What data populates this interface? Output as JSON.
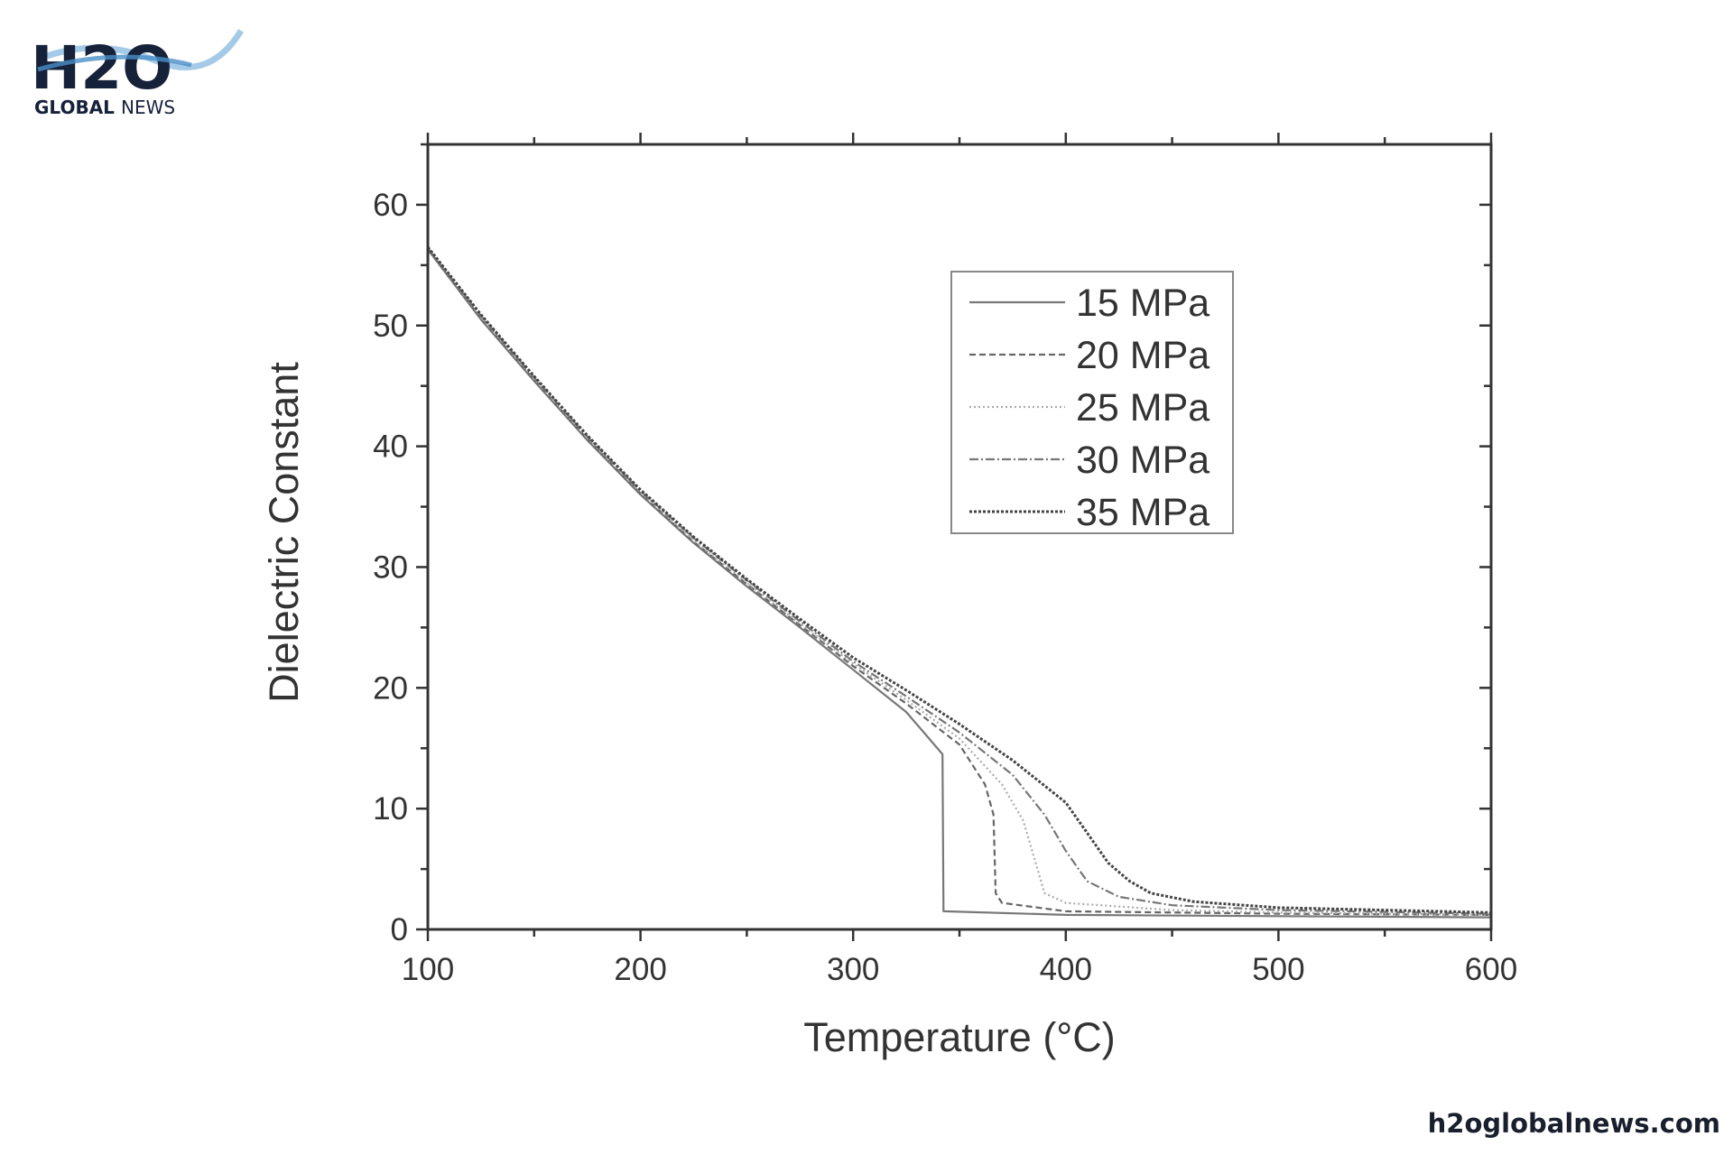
{
  "brand": {
    "logo_text": "H2O",
    "logo_subtitle_bold": "GLOBAL",
    "logo_subtitle": "NEWS",
    "site_url": "h2oglobalnews.com",
    "navy": "#16213a",
    "water": "#4a8fc7"
  },
  "chart_data": {
    "type": "line",
    "title": "",
    "xlabel": "Temperature (°C)",
    "ylabel": "Dielectric Constant",
    "xlim": [
      100,
      600
    ],
    "ylim": [
      0,
      65
    ],
    "xticks": [
      100,
      200,
      300,
      400,
      500,
      600
    ],
    "yticks": [
      0,
      10,
      20,
      30,
      40,
      50,
      60
    ],
    "xminor_step": 50,
    "yminor_step": 5,
    "grid": false,
    "legend_position": "top-right",
    "series": [
      {
        "name": "15 MPa",
        "style": "solid",
        "color": "#777777",
        "x": [
          100,
          125,
          150,
          175,
          200,
          225,
          250,
          275,
          300,
          325,
          342,
          342.5,
          400,
          500,
          600
        ],
        "y": [
          56.3,
          50.5,
          45.4,
          40.5,
          36,
          32,
          28.4,
          25,
          21.5,
          18,
          14.5,
          1.5,
          1.2,
          1.1,
          1.0
        ]
      },
      {
        "name": "20 MPa",
        "style": "dashed",
        "color": "#666666",
        "x": [
          100,
          125,
          150,
          175,
          200,
          225,
          250,
          275,
          300,
          325,
          350,
          362,
          366,
          367,
          370,
          400,
          500,
          600
        ],
        "y": [
          56.3,
          50.6,
          45.5,
          40.6,
          36.1,
          32.1,
          28.6,
          25.2,
          21.8,
          18.7,
          15.3,
          12,
          9.5,
          3,
          2.2,
          1.5,
          1.3,
          1.2
        ]
      },
      {
        "name": "25 MPa",
        "style": "dotted",
        "color": "#aaaaaa",
        "x": [
          100,
          125,
          150,
          175,
          200,
          225,
          250,
          275,
          300,
          325,
          350,
          370,
          380,
          385,
          390,
          400,
          450,
          500,
          600
        ],
        "y": [
          56.4,
          50.7,
          45.6,
          40.7,
          36.2,
          32.2,
          28.7,
          25.3,
          22,
          19,
          15.8,
          12,
          9,
          6,
          3,
          2.2,
          1.6,
          1.4,
          1.2
        ]
      },
      {
        "name": "30 MPa",
        "style": "dashdot",
        "color": "#777777",
        "x": [
          100,
          125,
          150,
          175,
          200,
          225,
          250,
          275,
          300,
          325,
          350,
          375,
          390,
          400,
          410,
          425,
          450,
          500,
          600
        ],
        "y": [
          56.4,
          50.8,
          45.7,
          40.8,
          36.3,
          32.4,
          28.9,
          25.5,
          22.2,
          19.3,
          16.3,
          12.8,
          9.5,
          6.5,
          4,
          2.7,
          2,
          1.6,
          1.3
        ]
      },
      {
        "name": "35 MPa",
        "style": "dotted-dense",
        "color": "#444444",
        "x": [
          100,
          125,
          150,
          175,
          200,
          225,
          250,
          275,
          300,
          325,
          350,
          375,
          400,
          410,
          420,
          430,
          440,
          460,
          500,
          550,
          600
        ],
        "y": [
          56.5,
          50.9,
          45.8,
          40.9,
          36.4,
          32.5,
          29,
          25.7,
          22.5,
          19.8,
          17,
          14,
          10.5,
          8,
          5.5,
          4,
          3,
          2.3,
          1.8,
          1.6,
          1.4
        ]
      }
    ]
  }
}
